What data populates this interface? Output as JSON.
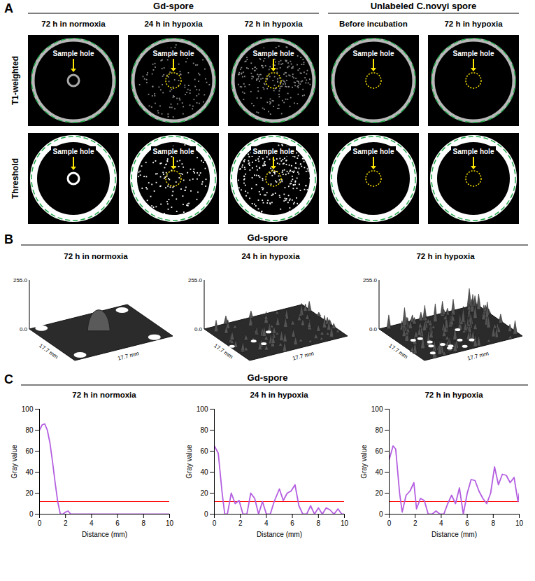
{
  "panel_a": {
    "label": "A",
    "columns": [
      {
        "group": "Gd-spore",
        "title": "72 h in normoxia"
      },
      {
        "group": "Gd-spore",
        "title": "24 h in hypoxia"
      },
      {
        "group": "Gd-spore",
        "title": "72 h in hypoxia"
      },
      {
        "group": "Unlabeled C.novyi spore",
        "title": "Before incubation"
      },
      {
        "group": "Unlabeled C.novyi spore",
        "title": "72 h in hypoxia"
      }
    ],
    "rows": [
      "T1-weighted",
      "Threshold"
    ],
    "annotation": "Sample hole"
  },
  "panel_b": {
    "label": "B",
    "group": "Gd-spore",
    "titles": [
      "72 h in normoxia",
      "24 h in hypoxia",
      "72 h in hypoxia"
    ],
    "z_ticks": [
      {
        "value": 0,
        "label": "0.0"
      },
      {
        "value": 255,
        "label": "255.0"
      }
    ],
    "size_label": "17.7 mm"
  },
  "panel_c": {
    "label": "C",
    "group": "Gd-spore"
  },
  "chart_data": [
    {
      "type": "line",
      "title": "72 h in normoxia",
      "xlabel": "Distance (mm)",
      "ylabel": "Gray value",
      "color": "#b45ee0",
      "x": [
        0,
        0.2,
        0.4,
        0.6,
        0.8,
        1.0,
        1.2,
        1.4,
        1.6,
        1.8,
        2.0,
        2.2,
        2.4,
        3,
        4,
        5,
        6,
        7,
        8,
        9,
        10
      ],
      "values": [
        80,
        85,
        86,
        80,
        68,
        50,
        30,
        12,
        0,
        0,
        2,
        3,
        0,
        0,
        0,
        0,
        0,
        0,
        0,
        0,
        0
      ],
      "threshold": 12,
      "xlim": [
        0,
        10
      ],
      "xticks": [
        0,
        2,
        4,
        6,
        8,
        10
      ],
      "ylim": [
        0,
        100
      ],
      "yticks": [
        0,
        20,
        40,
        60,
        80,
        100
      ]
    },
    {
      "type": "line",
      "title": "24 h in hypoxia",
      "xlabel": "Distance (mm)",
      "ylabel": "Gray value",
      "color": "#b45ee0",
      "x": [
        0,
        0.3,
        0.6,
        0.8,
        1.0,
        1.3,
        1.6,
        1.9,
        2.2,
        2.5,
        2.8,
        3.1,
        3.4,
        3.7,
        4.0,
        4.3,
        4.6,
        5.0,
        5.3,
        5.6,
        5.9,
        6.2,
        6.5,
        6.8,
        7.1,
        7.4,
        7.7,
        8.0,
        8.3,
        8.6,
        8.9,
        9.2,
        9.5,
        9.8,
        10
      ],
      "values": [
        65,
        58,
        20,
        0,
        0,
        20,
        10,
        13,
        0,
        0,
        20,
        15,
        0,
        12,
        0,
        0,
        12,
        24,
        13,
        20,
        22,
        28,
        8,
        0,
        0,
        8,
        0,
        6,
        0,
        6,
        4,
        0,
        5,
        0,
        0
      ],
      "threshold": 12,
      "xlim": [
        0,
        10
      ],
      "xticks": [
        0,
        2,
        4,
        6,
        8,
        10
      ],
      "ylim": [
        0,
        100
      ],
      "yticks": [
        0,
        20,
        40,
        60,
        80,
        100
      ]
    },
    {
      "type": "line",
      "title": "72 h in hypoxia",
      "xlabel": "Distance (mm)",
      "ylabel": "Gray value",
      "color": "#b45ee0",
      "x": [
        0,
        0.3,
        0.5,
        0.8,
        1.0,
        1.3,
        1.6,
        1.9,
        2.1,
        2.4,
        2.7,
        3.0,
        3.3,
        3.6,
        3.9,
        4.2,
        4.5,
        4.8,
        5.1,
        5.4,
        5.7,
        6.0,
        6.3,
        6.6,
        6.9,
        7.2,
        7.5,
        7.8,
        8.1,
        8.4,
        8.7,
        9.0,
        9.3,
        9.6,
        9.9,
        10
      ],
      "values": [
        52,
        65,
        62,
        20,
        2,
        18,
        22,
        30,
        5,
        15,
        13,
        0,
        0,
        3,
        0,
        0,
        10,
        18,
        10,
        25,
        0,
        20,
        33,
        32,
        22,
        15,
        10,
        20,
        45,
        28,
        38,
        37,
        30,
        35,
        12,
        20
      ],
      "threshold": 12,
      "xlim": [
        0,
        10
      ],
      "xticks": [
        0,
        2,
        4,
        6,
        8,
        10
      ],
      "ylim": [
        0,
        100
      ],
      "yticks": [
        0,
        20,
        40,
        60,
        80,
        100
      ]
    }
  ]
}
